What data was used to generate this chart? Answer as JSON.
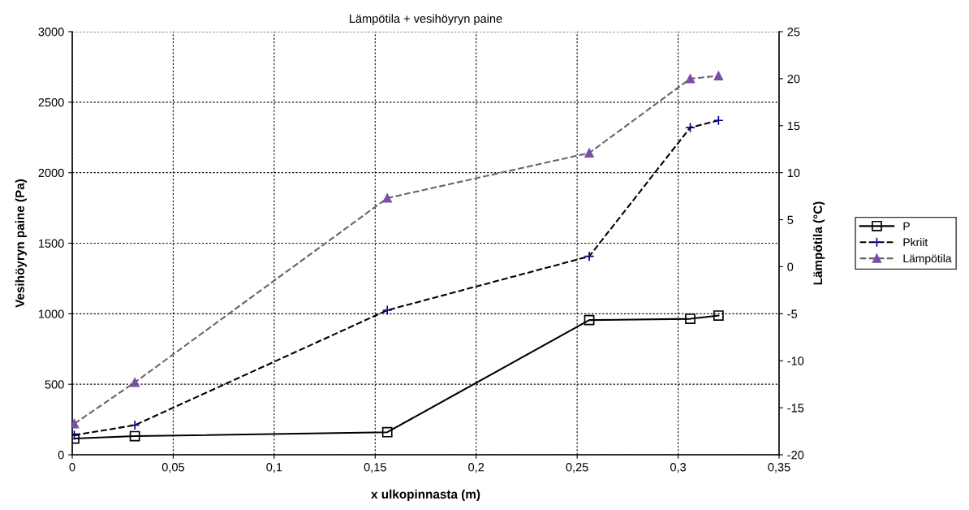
{
  "chart_data": {
    "type": "line",
    "title": "Lämpötila + vesihöyryn paine",
    "xlabel": "x ulkopinnasta (m)",
    "ylabel": "Vesihöyryn paine (Pa)",
    "y2label": "Lämpötila (°C)",
    "x": [
      0.001,
      0.031,
      0.156,
      0.256,
      0.306,
      0.32
    ],
    "series": [
      {
        "name": "P",
        "color": "#000000",
        "marker": "square",
        "line_style": "solid",
        "values": [
          115,
          132,
          160,
          955,
          964,
          987
        ]
      },
      {
        "name": "Pkriit",
        "color": "#000080",
        "marker": "cross",
        "line_style": "dashed",
        "values": [
          139,
          210,
          1025,
          1407,
          2320,
          2371
        ]
      },
      {
        "name": "Lämpötila",
        "color": "#7a4fa8",
        "marker": "triangle",
        "line_style": "dashed",
        "axis": "y2",
        "values": [
          -16.7,
          -12.3,
          7.3,
          12.1,
          20.0,
          20.3
        ]
      }
    ],
    "xlim": [
      0,
      0.35
    ],
    "xticks": [
      0,
      {
        "value": 0.05,
        "label": "0,05"
      },
      {
        "value": 0.1,
        "label": "0,1"
      },
      {
        "value": 0.15,
        "label": "0,15"
      },
      {
        "value": 0.2,
        "label": "0,2"
      },
      {
        "value": 0.25,
        "label": "0,25"
      },
      {
        "value": 0.3,
        "label": "0,3"
      },
      {
        "value": 0.35,
        "label": "0,35"
      }
    ],
    "ylim": [
      0,
      3000
    ],
    "yticks": [
      0,
      500,
      1000,
      1500,
      2000,
      2500,
      3000
    ],
    "y2lim": [
      -20,
      25
    ],
    "y2ticks": [
      -20,
      -15,
      -10,
      -5,
      0,
      5,
      10,
      15,
      20,
      25
    ],
    "grid": true,
    "legend": "right"
  }
}
